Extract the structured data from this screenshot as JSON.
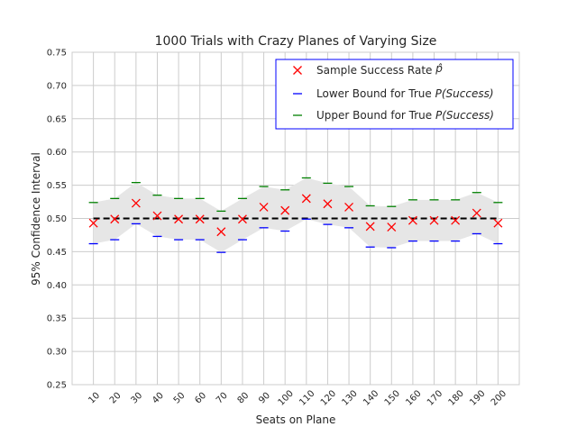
{
  "chart_data": {
    "type": "scatter",
    "title": "1000 Trials with Crazy Planes of Varying Size",
    "xlabel": "Seats on Plane",
    "ylabel": "95% Confidence Interval",
    "ylim": [
      0.25,
      0.75
    ],
    "yticks": [
      "0.25",
      "0.30",
      "0.35",
      "0.40",
      "0.45",
      "0.50",
      "0.55",
      "0.60",
      "0.65",
      "0.70",
      "0.75"
    ],
    "categories": [
      "10",
      "20",
      "30",
      "40",
      "50",
      "60",
      "70",
      "80",
      "90",
      "100",
      "110",
      "120",
      "130",
      "140",
      "150",
      "160",
      "170",
      "180",
      "190",
      "200"
    ],
    "reference_line": 0.5,
    "grid": true,
    "legend_position": "top-right",
    "series": [
      {
        "name": "Sample Success Rate $\\hat{p}$",
        "legend_text": "Sample Success Rate ",
        "legend_math": "p̂",
        "marker": "x",
        "color": "#ff0000",
        "values": [
          0.493,
          0.499,
          0.523,
          0.504,
          0.499,
          0.499,
          0.48,
          0.499,
          0.517,
          0.512,
          0.53,
          0.522,
          0.517,
          0.488,
          0.487,
          0.497,
          0.497,
          0.497,
          0.508,
          0.493
        ]
      },
      {
        "name": "Lower Bound for True $P(Success)$",
        "legend_text": "Lower Bound for True ",
        "legend_math": "P(Success)",
        "marker": "_",
        "color": "#0000ff",
        "values": [
          0.462,
          0.468,
          0.492,
          0.473,
          0.468,
          0.468,
          0.449,
          0.468,
          0.486,
          0.481,
          0.499,
          0.491,
          0.486,
          0.457,
          0.456,
          0.466,
          0.466,
          0.466,
          0.477,
          0.462
        ]
      },
      {
        "name": "Upper Bound for True $P(Success)$",
        "legend_text": "Upper Bound for True ",
        "legend_math": "P(Success)",
        "marker": "_",
        "color": "#008000",
        "values": [
          0.524,
          0.53,
          0.554,
          0.535,
          0.53,
          0.53,
          0.511,
          0.53,
          0.548,
          0.543,
          0.561,
          0.553,
          0.548,
          0.519,
          0.518,
          0.528,
          0.528,
          0.528,
          0.539,
          0.524
        ]
      }
    ],
    "band_color": "#e6e6e6",
    "reference_color": "#000000",
    "legend_border_color": "#0000ff"
  }
}
